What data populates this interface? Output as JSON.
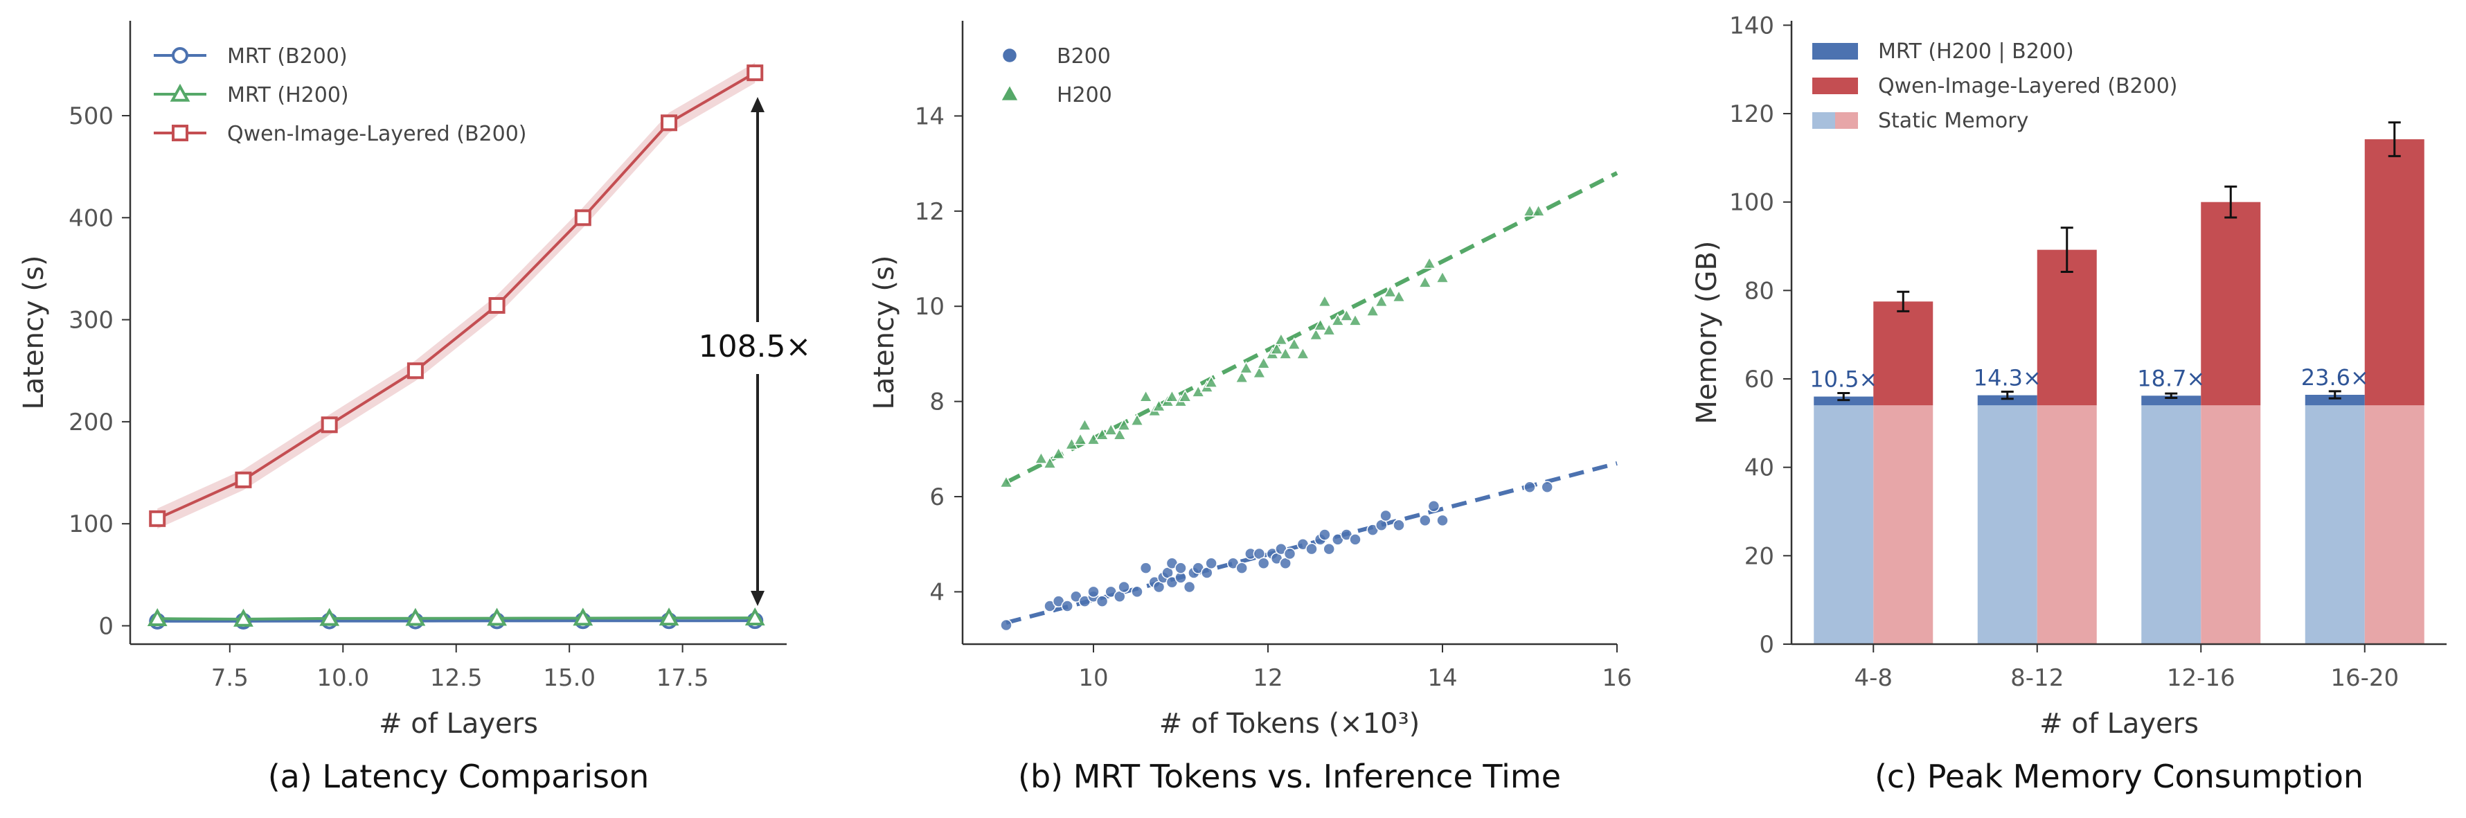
{
  "chart_data": [
    {
      "type": "line",
      "caption": "(a) Latency Comparison",
      "xlabel": "# of Layers",
      "ylabel": "Latency (s)",
      "xlim": [
        5.3,
        19.8
      ],
      "ylim": [
        -18,
        593
      ],
      "xticks": [
        7.5,
        10.0,
        12.5,
        15.0,
        17.5
      ],
      "xtick_labels": [
        "7.5",
        "10.0",
        "12.5",
        "15.0",
        "17.5"
      ],
      "yticks": [
        0,
        100,
        200,
        300,
        400,
        500
      ],
      "ytick_labels": [
        "0",
        "100",
        "200",
        "300",
        "400",
        "500"
      ],
      "x": [
        5.9,
        7.8,
        9.7,
        11.6,
        13.4,
        15.3,
        17.2,
        19.1
      ],
      "series": [
        {
          "name": "MRT (B200)",
          "color": "#4c72b0",
          "marker": "circle",
          "values": [
            4.5,
            4.5,
            4.7,
            4.7,
            4.8,
            4.9,
            4.9,
            5.0
          ]
        },
        {
          "name": "MRT (H200)",
          "color": "#55a868",
          "marker": "triangle",
          "values": [
            7.0,
            6.5,
            7.2,
            7.3,
            7.4,
            7.5,
            7.6,
            7.7
          ]
        },
        {
          "name": "Qwen-Image-Layered (B200)",
          "color": "#c44e52",
          "marker": "square",
          "values": [
            105,
            143,
            197,
            250,
            314,
            400,
            493,
            542
          ],
          "band": 10
        }
      ],
      "legend_position": "top-left",
      "annotation": {
        "text": "108.5×",
        "x": 19.1,
        "y_from": 542,
        "y_to": 6
      }
    },
    {
      "type": "scatter",
      "caption": "(b) MRT Tokens vs. Inference Time",
      "xlabel": "# of Tokens (×10³)",
      "ylabel": "Latency (s)",
      "xlim": [
        8.5,
        16.0
      ],
      "ylim": [
        2.9,
        16.0
      ],
      "xticks": [
        10,
        12,
        14,
        16
      ],
      "xtick_labels": [
        "10",
        "12",
        "14",
        "16"
      ],
      "yticks": [
        4,
        6,
        8,
        10,
        12,
        14
      ],
      "ytick_labels": [
        "4",
        "6",
        "8",
        "10",
        "12",
        "14"
      ],
      "series": [
        {
          "name": "B200",
          "color": "#4c72b0",
          "marker": "circle",
          "fit": {
            "x0": 9.0,
            "y0": 3.35,
            "x1": 16.0,
            "y1": 6.7
          },
          "points": [
            [
              9.0,
              3.3
            ],
            [
              9.5,
              3.7
            ],
            [
              9.6,
              3.8
            ],
            [
              9.7,
              3.7
            ],
            [
              9.8,
              3.9
            ],
            [
              9.9,
              3.8
            ],
            [
              10.0,
              3.9
            ],
            [
              10.0,
              4.0
            ],
            [
              10.1,
              3.8
            ],
            [
              10.2,
              4.0
            ],
            [
              10.3,
              3.9
            ],
            [
              10.35,
              4.1
            ],
            [
              10.5,
              4.0
            ],
            [
              10.6,
              4.5
            ],
            [
              10.7,
              4.2
            ],
            [
              10.75,
              4.1
            ],
            [
              10.8,
              4.3
            ],
            [
              10.85,
              4.4
            ],
            [
              10.9,
              4.2
            ],
            [
              10.9,
              4.6
            ],
            [
              11.0,
              4.3
            ],
            [
              11.0,
              4.5
            ],
            [
              11.1,
              4.1
            ],
            [
              11.15,
              4.4
            ],
            [
              11.2,
              4.5
            ],
            [
              11.3,
              4.4
            ],
            [
              11.35,
              4.6
            ],
            [
              11.6,
              4.6
            ],
            [
              11.7,
              4.5
            ],
            [
              11.8,
              4.8
            ],
            [
              11.9,
              4.8
            ],
            [
              11.95,
              4.6
            ],
            [
              12.05,
              4.8
            ],
            [
              12.1,
              4.7
            ],
            [
              12.15,
              4.9
            ],
            [
              12.2,
              4.6
            ],
            [
              12.25,
              4.8
            ],
            [
              12.4,
              5.0
            ],
            [
              12.5,
              4.9
            ],
            [
              12.6,
              5.1
            ],
            [
              12.65,
              5.2
            ],
            [
              12.7,
              4.9
            ],
            [
              12.8,
              5.1
            ],
            [
              12.9,
              5.2
            ],
            [
              13.0,
              5.1
            ],
            [
              13.2,
              5.3
            ],
            [
              13.3,
              5.4
            ],
            [
              13.35,
              5.6
            ],
            [
              13.5,
              5.4
            ],
            [
              13.8,
              5.5
            ],
            [
              13.9,
              5.8
            ],
            [
              14.0,
              5.5
            ],
            [
              15.0,
              6.2
            ],
            [
              15.2,
              6.2
            ]
          ]
        },
        {
          "name": "H200",
          "color": "#55a868",
          "marker": "triangle",
          "fit": {
            "x0": 9.0,
            "y0": 6.3,
            "x1": 16.0,
            "y1": 12.8
          },
          "points": [
            [
              9.0,
              6.3
            ],
            [
              9.4,
              6.8
            ],
            [
              9.5,
              6.7
            ],
            [
              9.6,
              6.9
            ],
            [
              9.75,
              7.1
            ],
            [
              9.85,
              7.2
            ],
            [
              9.9,
              7.5
            ],
            [
              10.0,
              7.2
            ],
            [
              10.1,
              7.3
            ],
            [
              10.2,
              7.4
            ],
            [
              10.3,
              7.3
            ],
            [
              10.35,
              7.5
            ],
            [
              10.5,
              7.6
            ],
            [
              10.6,
              8.1
            ],
            [
              10.7,
              7.8
            ],
            [
              10.75,
              7.9
            ],
            [
              10.85,
              8.0
            ],
            [
              10.9,
              8.1
            ],
            [
              11.0,
              8.0
            ],
            [
              11.05,
              8.1
            ],
            [
              11.2,
              8.2
            ],
            [
              11.3,
              8.3
            ],
            [
              11.35,
              8.4
            ],
            [
              11.7,
              8.5
            ],
            [
              11.75,
              8.7
            ],
            [
              11.9,
              8.6
            ],
            [
              11.95,
              8.8
            ],
            [
              12.05,
              9.0
            ],
            [
              12.1,
              9.1
            ],
            [
              12.15,
              9.3
            ],
            [
              12.2,
              9.0
            ],
            [
              12.3,
              9.2
            ],
            [
              12.4,
              9.0
            ],
            [
              12.55,
              9.4
            ],
            [
              12.6,
              9.6
            ],
            [
              12.65,
              10.1
            ],
            [
              12.7,
              9.5
            ],
            [
              12.8,
              9.7
            ],
            [
              12.9,
              9.8
            ],
            [
              13.0,
              9.7
            ],
            [
              13.2,
              9.9
            ],
            [
              13.3,
              10.1
            ],
            [
              13.4,
              10.3
            ],
            [
              13.5,
              10.2
            ],
            [
              13.8,
              10.5
            ],
            [
              13.85,
              10.9
            ],
            [
              14.0,
              10.6
            ],
            [
              15.0,
              12.0
            ],
            [
              15.1,
              12.0
            ]
          ]
        }
      ],
      "legend_position": "top-left"
    },
    {
      "type": "bar",
      "caption": "(c) Peak Memory Consumption",
      "xlabel": "# of Layers",
      "ylabel": "Memory (GB)",
      "ylim": [
        0,
        141
      ],
      "yticks": [
        0,
        20,
        40,
        60,
        80,
        100,
        120,
        140
      ],
      "ytick_labels": [
        "0",
        "20",
        "40",
        "60",
        "80",
        "100",
        "120",
        "140"
      ],
      "categories": [
        "4-8",
        "8-12",
        "12-16",
        "16-20"
      ],
      "static_memory": 54,
      "series": [
        {
          "name": "MRT (H200 | B200)",
          "color": "#4c72b0",
          "static_color": "#a7bfdc",
          "values": [
            56.0,
            56.3,
            56.2,
            56.4
          ],
          "errors": [
            0.8,
            0.8,
            0.5,
            0.8
          ]
        },
        {
          "name": "Qwen-Image-Layered (B200)",
          "color": "#c44e52",
          "static_color": "#e7a6a8",
          "values": [
            77.5,
            89.2,
            100.0,
            114.2
          ],
          "errors": [
            2.2,
            5.0,
            3.5,
            3.8
          ]
        }
      ],
      "static_label": "Static Memory",
      "ratio_labels": [
        "10.5×",
        "14.3×",
        "18.7×",
        "23.6×"
      ],
      "ratio_color": "#2f5597",
      "legend_position": "top-left"
    }
  ]
}
